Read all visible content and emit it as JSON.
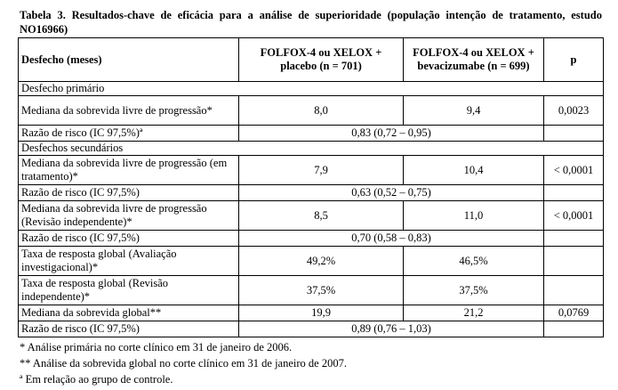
{
  "caption": "Tabela 3. Resultados-chave de eficácia para a análise de superioridade (população intenção de tratamento, estudo NO16966)",
  "header": {
    "col1": "Desfecho (meses)",
    "col2": "FOLFOX-4 ou XELOX + placebo (n = 701)",
    "col3": "FOLFOX-4 ou XELOX + bevacizumabe (n = 699)",
    "col4": "p"
  },
  "sections": {
    "primary": "Desfecho primário",
    "secondary": "Desfechos secundários"
  },
  "rows": {
    "pfs": {
      "label": "Mediana da sobrevida livre de progressão*",
      "a": "8,0",
      "b": "9,4",
      "p": "0,0023"
    },
    "pfs_hr": {
      "label": "Razão de risco (IC 97,5%)ª",
      "value": "0,83 (0,72 – 0,95)"
    },
    "pfs_on": {
      "label": "Mediana da sobrevida livre de progressão (em tratamento)*",
      "a": "7,9",
      "b": "10,4",
      "p": "< 0,0001"
    },
    "pfs_on_hr": {
      "label": "Razão de risco (IC 97,5%)",
      "value": "0,63 (0,52 – 0,75)"
    },
    "pfs_irc": {
      "label": "Mediana da sobrevida livre de progressão (Revisão independente)*",
      "a": "8,5",
      "b": "11,0",
      "p": "< 0,0001"
    },
    "pfs_irc_hr": {
      "label": "Razão de risco (IC 97,5%)",
      "value": "0,70 (0,58 – 0,83)"
    },
    "orr_inv": {
      "label": "Taxa de resposta global (Avaliação investigacional)*",
      "a": "49,2%",
      "b": "46,5%",
      "p": ""
    },
    "orr_irc": {
      "label": "Taxa de resposta global (Revisão independente)*",
      "a": "37,5%",
      "b": "37,5%",
      "p": ""
    },
    "os": {
      "label": "Mediana da sobrevida global**",
      "a": "19,9",
      "b": "21,2",
      "p": "0,0769"
    },
    "os_hr": {
      "label": "Razão de risco (IC 97,5%)",
      "value": "0,89 (0,76 – 1,03)"
    }
  },
  "footnotes": [
    "* Análise primária no corte clínico em 31 de janeiro de 2006.",
    "** Análise da sobrevida global no corte clínico em 31 de janeiro de 2007.",
    "ª Em relação ao grupo de controle."
  ]
}
